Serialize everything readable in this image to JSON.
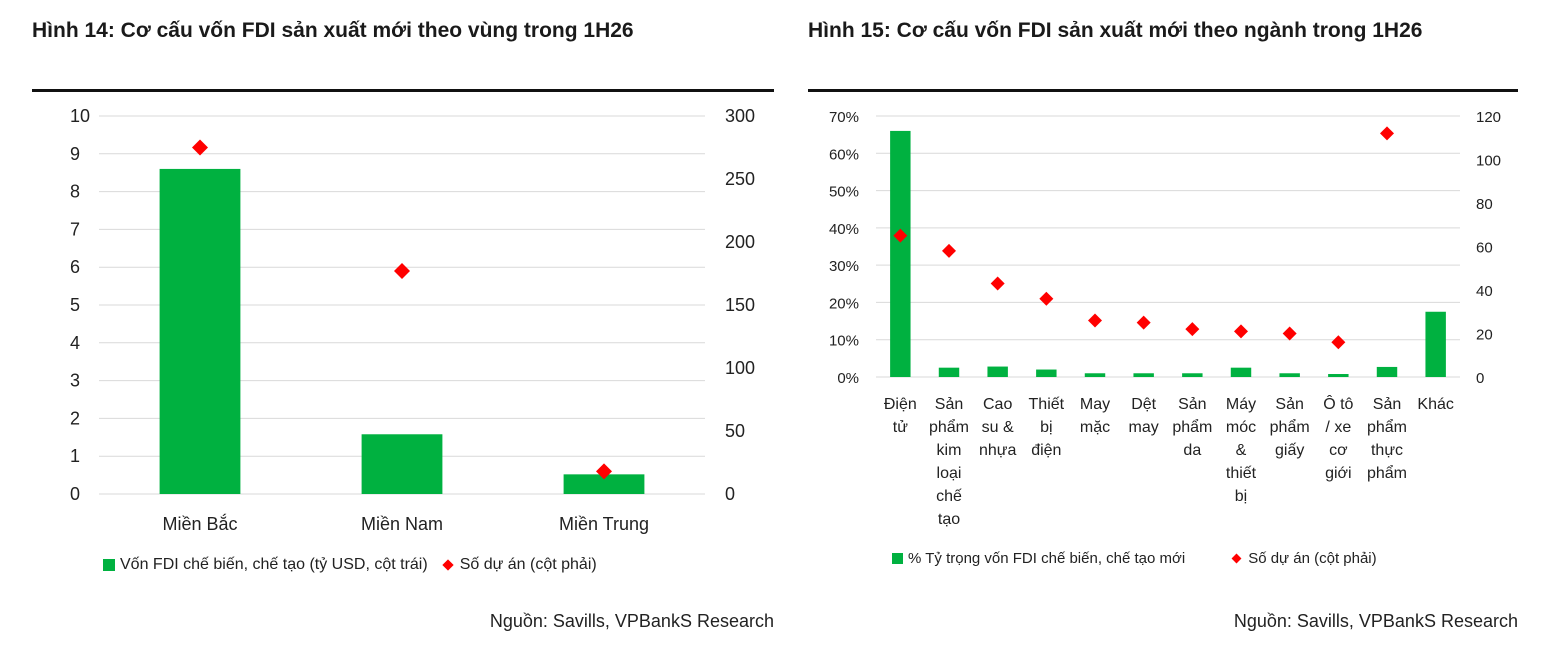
{
  "colors": {
    "bar": "#00b140",
    "marker": "#ff0000",
    "grid": "#d9d9d9"
  },
  "chart_data": [
    {
      "type": "bar",
      "title": "Hình 14: Cơ cấu vốn FDI sản xuất mới theo vùng trong 1H26",
      "categories": [
        "Miền Bắc",
        "Miền Nam",
        "Miền Trung"
      ],
      "series": [
        {
          "name": "Vốn FDI chế biến, chế tạo (tỷ USD, cột trái)",
          "type": "bar",
          "axis": "left",
          "values": [
            8.6,
            1.58,
            0.52
          ]
        },
        {
          "name": "Số dự án (cột phải)",
          "type": "scatter",
          "axis": "right",
          "values": [
            275,
            177,
            18
          ]
        }
      ],
      "y_left": {
        "range": [
          0,
          10
        ],
        "ticks": [
          "0",
          "1",
          "2",
          "3",
          "4",
          "5",
          "6",
          "7",
          "8",
          "9",
          "10"
        ]
      },
      "y_right": {
        "range": [
          0,
          300
        ],
        "ticks": [
          "0",
          "50",
          "100",
          "150",
          "200",
          "250",
          "300"
        ]
      },
      "grid": true,
      "legend_position": "bottom",
      "source": "Nguồn: Savills, VPBankS Research"
    },
    {
      "type": "bar",
      "title": "Hình 15: Cơ cấu vốn FDI sản xuất mới theo ngành trong 1H26",
      "categories": [
        [
          "Điện",
          "tử"
        ],
        [
          "Sản",
          "phẩm",
          "kim",
          "loại",
          "chế",
          "tạo"
        ],
        [
          "Cao",
          "su &",
          "nhựa"
        ],
        [
          "Thiết",
          "bị",
          "điện"
        ],
        [
          "May",
          "mặc"
        ],
        [
          "Dệt",
          "may"
        ],
        [
          "Sản",
          "phẩm",
          "da"
        ],
        [
          "Máy",
          "móc",
          "&",
          "thiết",
          "bị"
        ],
        [
          "Sản",
          "phẩm",
          "giấy"
        ],
        [
          "Ô tô",
          "/ xe",
          "cơ",
          "giới"
        ],
        [
          "Sản",
          "phẩm",
          "thực",
          "phẩm"
        ],
        [
          "Khác"
        ]
      ],
      "series": [
        {
          "name": "% Tỷ trọng vốn FDI chế biến, chế tạo mới",
          "type": "bar",
          "axis": "left",
          "values": [
            0.66,
            0.025,
            0.028,
            0.02,
            0.01,
            0.01,
            0.01,
            0.025,
            0.01,
            0.008,
            0.027,
            0.175
          ]
        },
        {
          "name": "Số dự án (cột phải)",
          "type": "scatter",
          "axis": "right",
          "values": [
            65,
            58,
            43,
            36,
            26,
            25,
            22,
            21,
            20,
            16,
            112,
            null
          ]
        }
      ],
      "y_left": {
        "range": [
          0,
          0.7
        ],
        "ticks": [
          "0%",
          "10%",
          "20%",
          "30%",
          "40%",
          "50%",
          "60%",
          "70%"
        ]
      },
      "y_right": {
        "range": [
          0,
          120
        ],
        "ticks": [
          "0",
          "20",
          "40",
          "60",
          "80",
          "100",
          "120"
        ]
      },
      "grid": true,
      "legend_position": "bottom",
      "source": "Nguồn: Savills, VPBankS Research"
    }
  ]
}
